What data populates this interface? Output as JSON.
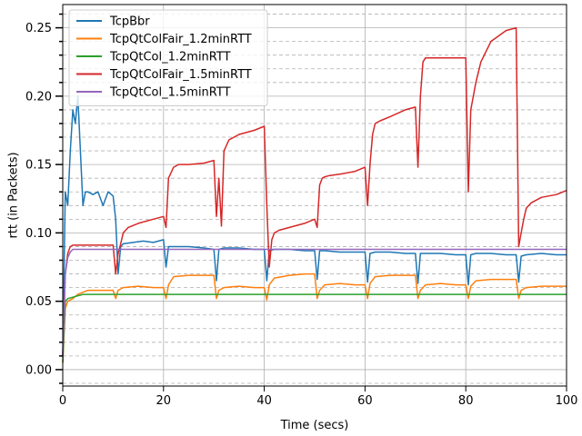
{
  "chart_data": {
    "type": "line",
    "title": "",
    "xlabel": "Time (secs)",
    "ylabel": "rtt (in Packets)",
    "xlim": [
      0,
      100
    ],
    "ylim": [
      -0.012,
      0.267
    ],
    "xticks": [
      0,
      20,
      40,
      60,
      80,
      100
    ],
    "xtick_labels": [
      "0",
      "20",
      "40",
      "60",
      "80",
      "100"
    ],
    "yticks": [
      0.0,
      0.05,
      0.1,
      0.15,
      0.2,
      0.25
    ],
    "ytick_labels": [
      "0.00",
      "0.05",
      "0.10",
      "0.15",
      "0.20",
      "0.25"
    ],
    "y_minor_step": 0.01,
    "grid": true,
    "legend_position": "top-left",
    "series": [
      {
        "name": "TcpBbr",
        "color": "#1f77b4",
        "x": [
          0,
          0.5,
          1,
          1.5,
          2,
          2.5,
          3,
          3.5,
          4,
          4.5,
          5,
          6,
          7,
          8,
          9,
          10,
          10.5,
          11,
          11.5,
          12,
          14,
          16,
          18,
          20,
          20.5,
          21,
          22,
          25,
          28,
          30,
          30.5,
          31,
          32,
          35,
          38,
          40,
          40.5,
          41,
          42,
          45,
          48,
          50,
          50.5,
          51,
          52,
          55,
          58,
          60,
          60.5,
          61,
          62,
          65,
          68,
          70,
          70.5,
          71,
          72,
          75,
          78,
          80,
          80.5,
          81,
          82,
          85,
          88,
          90,
          90.5,
          91,
          92,
          95,
          98,
          100
        ],
        "y": [
          0.01,
          0.13,
          0.12,
          0.16,
          0.19,
          0.18,
          0.2,
          0.16,
          0.12,
          0.13,
          0.13,
          0.128,
          0.13,
          0.12,
          0.13,
          0.127,
          0.11,
          0.07,
          0.09,
          0.092,
          0.093,
          0.094,
          0.093,
          0.095,
          0.075,
          0.09,
          0.09,
          0.09,
          0.089,
          0.088,
          0.065,
          0.088,
          0.089,
          0.089,
          0.088,
          0.088,
          0.065,
          0.087,
          0.088,
          0.088,
          0.087,
          0.087,
          0.066,
          0.087,
          0.087,
          0.086,
          0.086,
          0.086,
          0.064,
          0.085,
          0.086,
          0.086,
          0.085,
          0.085,
          0.063,
          0.085,
          0.085,
          0.085,
          0.084,
          0.084,
          0.062,
          0.084,
          0.085,
          0.085,
          0.084,
          0.084,
          0.064,
          0.083,
          0.084,
          0.085,
          0.084,
          0.084
        ]
      },
      {
        "name": "TcpQtColFair_1.2minRTT",
        "color": "#ff7f0e",
        "x": [
          0,
          0.5,
          1,
          2,
          3,
          5,
          8,
          10,
          10.5,
          11,
          12,
          15,
          18,
          20,
          20.5,
          21,
          22,
          25,
          28,
          30,
          30.5,
          31,
          32,
          35,
          38,
          40,
          40.5,
          41,
          42,
          45,
          48,
          50,
          50.5,
          51,
          52,
          55,
          58,
          60,
          60.5,
          61,
          62,
          65,
          68,
          70,
          70.5,
          71,
          72,
          75,
          78,
          80,
          80.5,
          81,
          82,
          85,
          88,
          90,
          90.5,
          91,
          92,
          95,
          98,
          100
        ],
        "y": [
          0.005,
          0.045,
          0.05,
          0.052,
          0.055,
          0.058,
          0.058,
          0.058,
          0.052,
          0.058,
          0.06,
          0.061,
          0.06,
          0.06,
          0.052,
          0.062,
          0.068,
          0.069,
          0.069,
          0.069,
          0.052,
          0.058,
          0.06,
          0.061,
          0.06,
          0.06,
          0.051,
          0.062,
          0.067,
          0.069,
          0.07,
          0.07,
          0.052,
          0.058,
          0.062,
          0.063,
          0.062,
          0.062,
          0.052,
          0.063,
          0.068,
          0.069,
          0.069,
          0.069,
          0.052,
          0.058,
          0.062,
          0.063,
          0.062,
          0.062,
          0.052,
          0.061,
          0.065,
          0.066,
          0.066,
          0.066,
          0.052,
          0.058,
          0.06,
          0.061,
          0.061,
          0.061
        ]
      },
      {
        "name": "TcpQtCol_1.2minRTT",
        "color": "#2ca02c",
        "x": [
          0,
          0.5,
          1,
          2,
          3,
          4,
          5,
          10,
          20,
          30,
          40,
          50,
          60,
          70,
          80,
          90,
          100
        ],
        "y": [
          0.005,
          0.05,
          0.052,
          0.053,
          0.054,
          0.055,
          0.055,
          0.055,
          0.055,
          0.055,
          0.055,
          0.055,
          0.055,
          0.055,
          0.055,
          0.055,
          0.055
        ]
      },
      {
        "name": "TcpQtColFair_1.5minRTT",
        "color": "#d62728",
        "x": [
          0,
          0.5,
          1,
          1.5,
          2,
          3,
          5,
          8,
          10,
          10.5,
          11,
          11.5,
          12,
          13,
          15,
          18,
          20,
          20.5,
          21,
          22,
          23,
          25,
          28,
          30,
          30.5,
          31,
          31.5,
          32,
          33,
          35,
          38,
          40,
          40.5,
          41,
          41.5,
          42,
          43,
          45,
          48,
          50,
          50.5,
          51,
          51.5,
          52,
          53,
          55,
          58,
          60,
          60.5,
          61,
          61.5,
          62,
          63,
          65,
          68,
          70,
          70.5,
          71,
          71.5,
          72,
          73,
          75,
          78,
          80,
          80.5,
          81,
          81.5,
          82,
          83,
          85,
          88,
          90,
          90.5,
          91,
          91.5,
          92,
          93,
          95,
          98,
          100
        ],
        "y": [
          0.01,
          0.07,
          0.085,
          0.09,
          0.091,
          0.091,
          0.091,
          0.091,
          0.091,
          0.07,
          0.085,
          0.092,
          0.1,
          0.104,
          0.107,
          0.11,
          0.112,
          0.104,
          0.14,
          0.148,
          0.15,
          0.15,
          0.151,
          0.153,
          0.112,
          0.14,
          0.105,
          0.16,
          0.168,
          0.172,
          0.175,
          0.178,
          0.12,
          0.075,
          0.095,
          0.1,
          0.102,
          0.104,
          0.107,
          0.11,
          0.104,
          0.135,
          0.14,
          0.141,
          0.142,
          0.143,
          0.145,
          0.148,
          0.12,
          0.15,
          0.172,
          0.18,
          0.182,
          0.185,
          0.19,
          0.192,
          0.148,
          0.2,
          0.225,
          0.228,
          0.228,
          0.228,
          0.228,
          0.228,
          0.13,
          0.19,
          0.2,
          0.21,
          0.225,
          0.24,
          0.248,
          0.25,
          0.09,
          0.1,
          0.11,
          0.118,
          0.122,
          0.126,
          0.128,
          0.131
        ]
      },
      {
        "name": "TcpQtCol_1.5minRTT",
        "color": "#9467bd",
        "x": [
          0,
          0.5,
          1,
          1.5,
          2,
          3,
          5,
          10,
          20,
          30,
          40,
          50,
          60,
          70,
          80,
          90,
          100
        ],
        "y": [
          0.01,
          0.07,
          0.082,
          0.086,
          0.088,
          0.088,
          0.088,
          0.088,
          0.088,
          0.088,
          0.088,
          0.088,
          0.088,
          0.088,
          0.088,
          0.088,
          0.088
        ]
      }
    ]
  }
}
